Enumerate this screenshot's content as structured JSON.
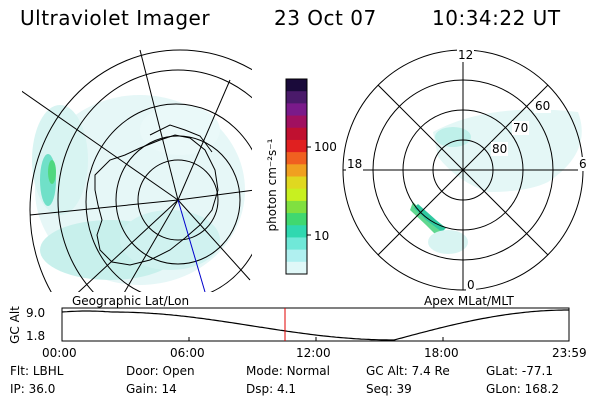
{
  "header": {
    "instrument": "Ultraviolet Imager",
    "date": "23 Oct 07",
    "time": "10:34:22 UT"
  },
  "left_panel": {
    "label": "Geographic Lat/Lon"
  },
  "right_panel": {
    "label": "Apex MLat/MLT",
    "mlt_labels": [
      "12",
      "18",
      "6",
      "0"
    ],
    "lat_labels": [
      "60",
      "70",
      "80"
    ]
  },
  "colorbar": {
    "unit_label": "photon cm⁻²s⁻¹",
    "tick_labels": [
      "100",
      "10"
    ],
    "colors": [
      "#1a0a3a",
      "#4a1a6a",
      "#7a1a8a",
      "#a01060",
      "#c01030",
      "#e02020",
      "#f06020",
      "#f0a020",
      "#e0d820",
      "#c8f020",
      "#80e040",
      "#40d870",
      "#30d8b0",
      "#70e8d8",
      "#b0f0f0",
      "#e0f8f8"
    ]
  },
  "alt_plot": {
    "ylabel": "GC Alt",
    "y_ticks": [
      "9.0",
      "1.8"
    ],
    "x_ticks": [
      "00:00",
      "06:00",
      "12:00",
      "18:00",
      "23:59"
    ],
    "curve_color": "#000000",
    "marker_color": "#e00000"
  },
  "status": {
    "row1": [
      {
        "label": "Flt:",
        "value": "LBHL"
      },
      {
        "label": "Door:",
        "value": "Open"
      },
      {
        "label": "Mode:",
        "value": "Normal"
      },
      {
        "label": "GC Alt:",
        "value": "7.4 Re"
      },
      {
        "label": "GLat:",
        "value": "-77.1"
      }
    ],
    "row2": [
      {
        "label": "IP:",
        "value": "36.0"
      },
      {
        "label": "Gain:",
        "value": "14"
      },
      {
        "label": "Dsp:",
        "value": "4.1"
      },
      {
        "label": "Seq:",
        "value": "39"
      },
      {
        "label": "GLon:",
        "value": "168.2"
      }
    ]
  }
}
